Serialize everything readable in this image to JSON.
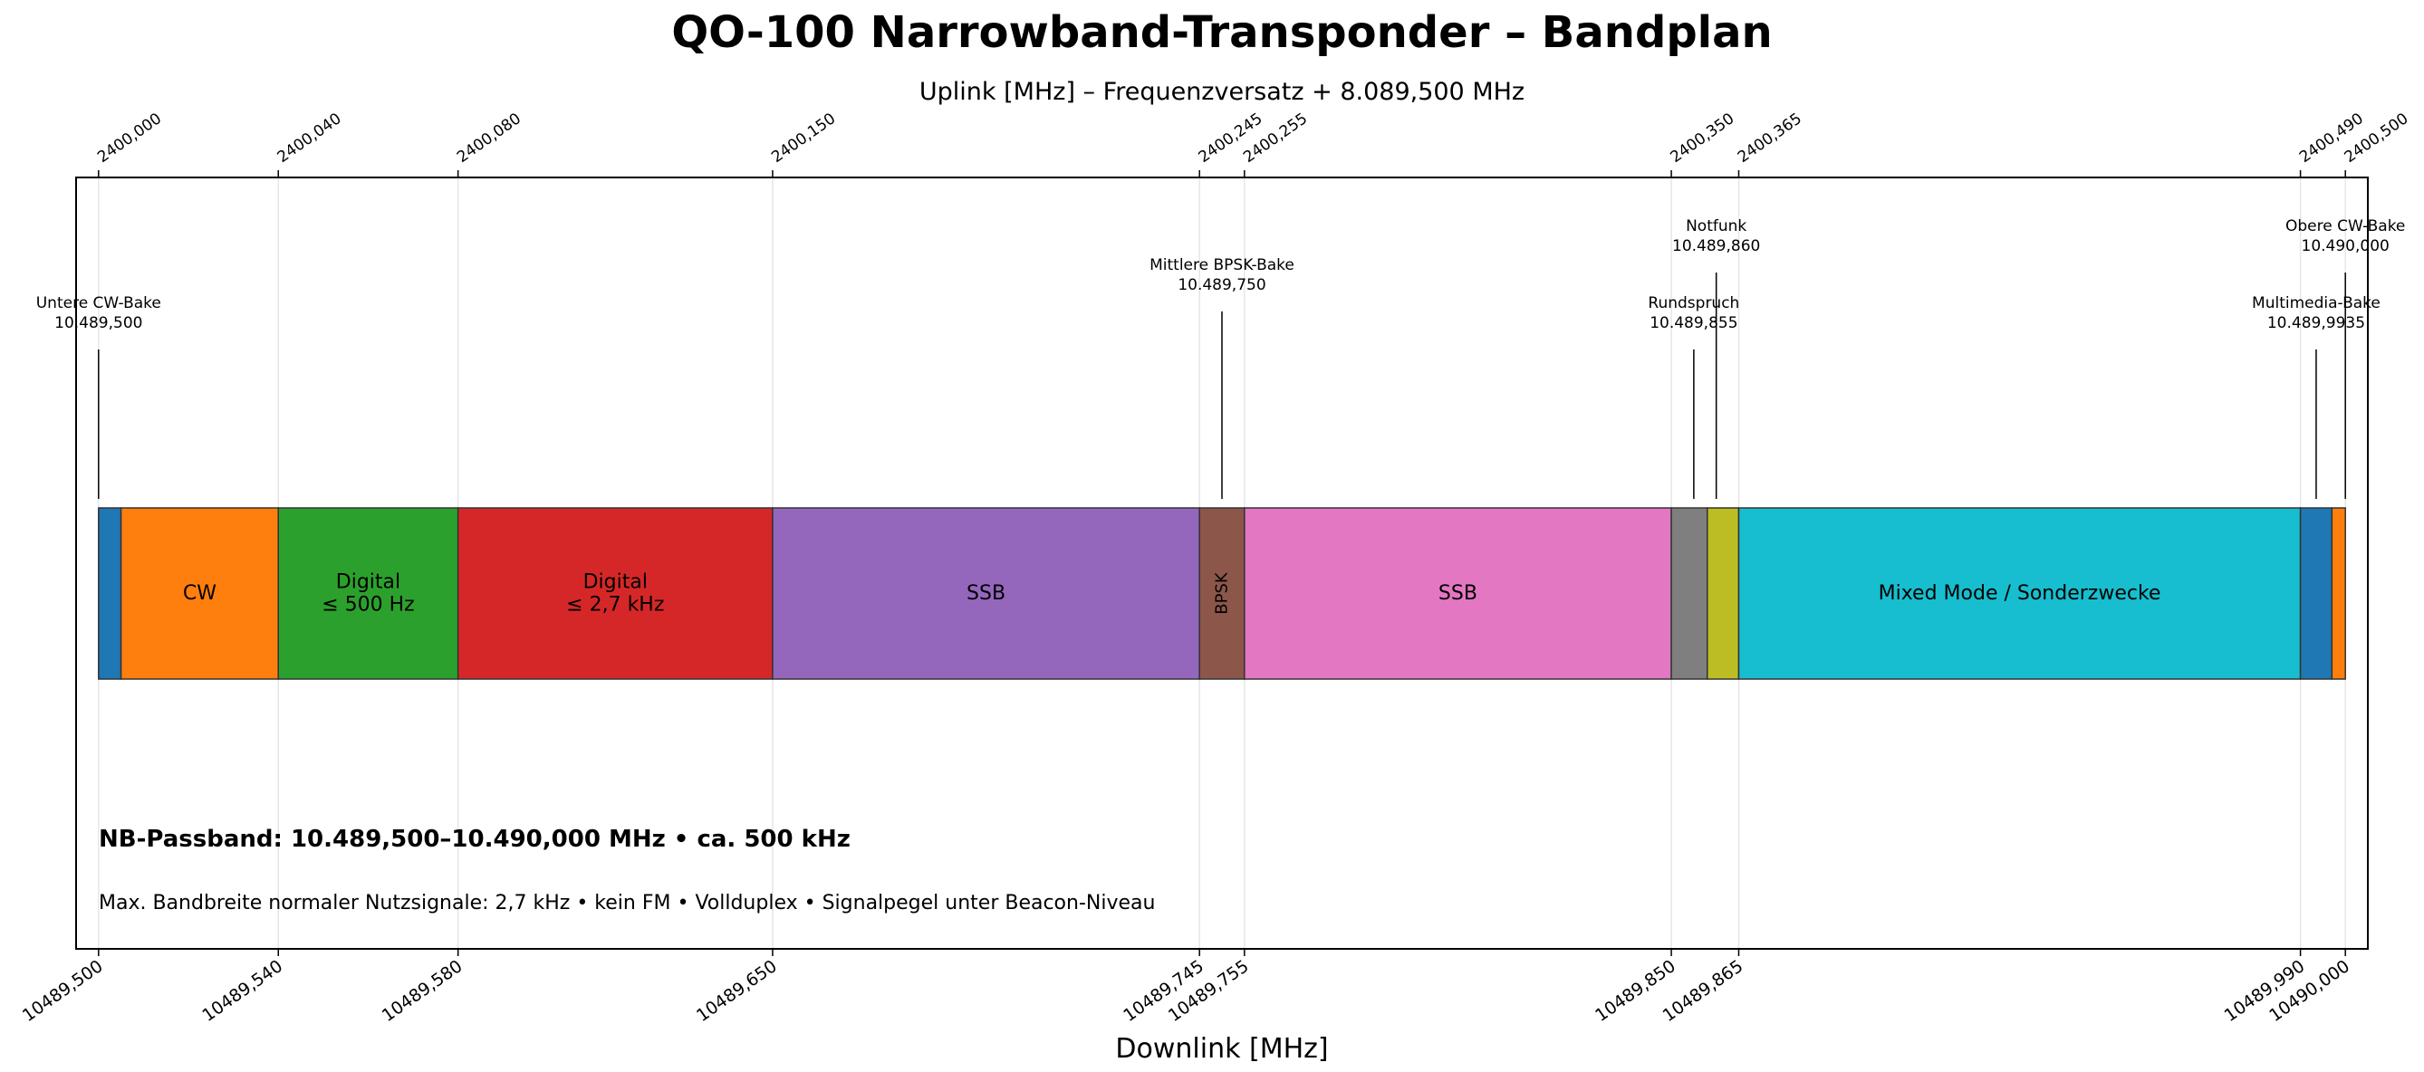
{
  "chart_data": {
    "type": "bar",
    "title": "QO-100 Narrowband-Transponder – Bandplan",
    "subtitle": "Uplink [MHz] – Frequenzversatz + 8.089,500 MHz",
    "xlabel": "Downlink [MHz]",
    "xlim": [
      10489.495,
      10490.005
    ],
    "grid": true,
    "bottom_ticks": [
      {
        "value": 10489.5,
        "label": "10489,500"
      },
      {
        "value": 10489.54,
        "label": "10489,540"
      },
      {
        "value": 10489.58,
        "label": "10489,580"
      },
      {
        "value": 10489.65,
        "label": "10489,650"
      },
      {
        "value": 10489.745,
        "label": "10489,745"
      },
      {
        "value": 10489.755,
        "label": "10489,755"
      },
      {
        "value": 10489.85,
        "label": "10489,850"
      },
      {
        "value": 10489.865,
        "label": "10489,865"
      },
      {
        "value": 10489.99,
        "label": "10489,990"
      },
      {
        "value": 10490.0,
        "label": "10490,000"
      }
    ],
    "top_ticks": [
      {
        "value": 10489.5,
        "label": "2400,000"
      },
      {
        "value": 10489.54,
        "label": "2400,040"
      },
      {
        "value": 10489.58,
        "label": "2400,080"
      },
      {
        "value": 10489.65,
        "label": "2400,150"
      },
      {
        "value": 10489.745,
        "label": "2400,245"
      },
      {
        "value": 10489.755,
        "label": "2400,255"
      },
      {
        "value": 10489.85,
        "label": "2400,350"
      },
      {
        "value": 10489.865,
        "label": "2400,365"
      },
      {
        "value": 10489.99,
        "label": "2400,490"
      },
      {
        "value": 10490.0,
        "label": "2400,500"
      }
    ],
    "segments": [
      {
        "start": 10489.5,
        "end": 10489.505,
        "color": "#1f77b4",
        "label": ""
      },
      {
        "start": 10489.505,
        "end": 10489.54,
        "color": "#ff7f0e",
        "label": "CW"
      },
      {
        "start": 10489.54,
        "end": 10489.58,
        "color": "#2ca02c",
        "label": "Digital\n≤ 500 Hz"
      },
      {
        "start": 10489.58,
        "end": 10489.65,
        "color": "#d62728",
        "label": "Digital\n≤ 2,7 kHz"
      },
      {
        "start": 10489.65,
        "end": 10489.745,
        "color": "#9467bd",
        "label": "SSB"
      },
      {
        "start": 10489.745,
        "end": 10489.755,
        "color": "#8c564b",
        "label": "BPSK",
        "rotated": true
      },
      {
        "start": 10489.755,
        "end": 10489.85,
        "color": "#e377c2",
        "label": "SSB"
      },
      {
        "start": 10489.85,
        "end": 10489.858,
        "color": "#7f7f7f",
        "label": ""
      },
      {
        "start": 10489.858,
        "end": 10489.865,
        "color": "#bcbd22",
        "label": ""
      },
      {
        "start": 10489.865,
        "end": 10489.99,
        "color": "#17becf",
        "label": "Mixed Mode / Sonderzwecke"
      },
      {
        "start": 10489.99,
        "end": 10489.997,
        "color": "#1f77b4",
        "label": ""
      },
      {
        "start": 10489.997,
        "end": 10490.0,
        "color": "#ff7f0e",
        "label": ""
      }
    ],
    "markers": [
      {
        "freq": 10489.5,
        "name": "Untere CW-Bake",
        "value": "10.489,500",
        "level": "low"
      },
      {
        "freq": 10489.75,
        "name": "Mittlere BPSK-Bake",
        "value": "10.489,750",
        "level": "mid"
      },
      {
        "freq": 10489.855,
        "name": "Rundspruch",
        "value": "10.489,855",
        "level": "low"
      },
      {
        "freq": 10489.86,
        "name": "Notfunk",
        "value": "10.489,860",
        "level": "high"
      },
      {
        "freq": 10489.9935,
        "name": "Multimedia-Bake",
        "value": "10.489,9935",
        "level": "low"
      },
      {
        "freq": 10490.0,
        "name": "Obere CW-Bake",
        "value": "10.490,000",
        "level": "high"
      }
    ],
    "annotations": {
      "passband": "NB-Passband: 10.489,500–10.490,000 MHz  •  ca. 500 kHz",
      "notes": "Max. Bandbreite normaler Nutzsignale: 2,7 kHz  •  kein FM  •  Vollduplex  •  Signalpegel unter Beacon-Niveau"
    }
  }
}
